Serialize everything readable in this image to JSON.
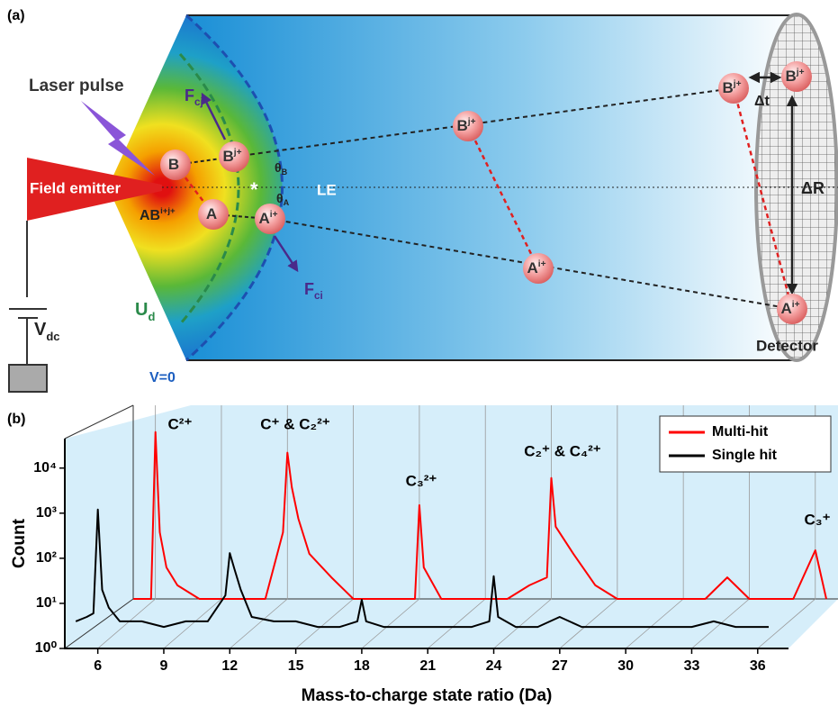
{
  "diagram": {
    "label": "(a)",
    "laser": "Laser pulse",
    "emitter": "Field emitter",
    "voltage": {
      "base": "V",
      "sub": "dc"
    },
    "potential": {
      "base": "U",
      "sub": "d"
    },
    "zero": "V=0",
    "le": "LE",
    "force_j": {
      "base": "F",
      "sub": "cj"
    },
    "force_i": {
      "base": "F",
      "sub": "ci"
    },
    "theta_b": {
      "base": "θ",
      "sub": "B"
    },
    "theta_a": {
      "base": "θ",
      "sub": "A"
    },
    "molecule": {
      "base": "AB",
      "sup": "i+j+"
    },
    "ions": [
      {
        "base": "B"
      },
      {
        "base": "A"
      },
      {
        "base": "B",
        "sup": "j+"
      },
      {
        "base": "A",
        "sup": "i+"
      },
      {
        "base": "B",
        "sup": "j+"
      },
      {
        "base": "A",
        "sup": "i+"
      },
      {
        "base": "B",
        "sup": "j+"
      },
      {
        "base": "B",
        "sup": "j+"
      },
      {
        "base": "A",
        "sup": "i+"
      }
    ],
    "delta_t": "Δt",
    "delta_r": "ΔR",
    "detector": "Detector"
  },
  "chart_data": {
    "type": "line",
    "panel_label": "(b)",
    "xlabel": "Mass-to-charge state ratio (Da)",
    "ylabel": "Count",
    "x": [
      5,
      5.5,
      5.8,
      6,
      6.2,
      6.5,
      7,
      8,
      9,
      10,
      11,
      11.8,
      12,
      12.2,
      12.5,
      13,
      14,
      15,
      16,
      17,
      17.8,
      18,
      18.2,
      19,
      20,
      21,
      22,
      23,
      23.8,
      24,
      24.2,
      25,
      26,
      27,
      28,
      29,
      30,
      31,
      32,
      33,
      34,
      35,
      36,
      36.5
    ],
    "series": [
      {
        "name": "Multi-hit",
        "color": "#ff0000",
        "values": [
          1,
          1,
          1,
          5000,
          30,
          5,
          2,
          1,
          1,
          1,
          1,
          30,
          1750,
          300,
          60,
          10,
          3,
          1,
          1,
          1,
          1,
          120,
          5,
          1,
          1,
          1,
          1,
          2,
          3,
          480,
          40,
          10,
          2,
          1,
          1,
          1,
          1,
          1,
          3,
          1,
          1,
          1,
          12,
          1
        ]
      },
      {
        "name": "Single hit",
        "color": "#000000",
        "values": [
          4,
          5,
          6,
          1200,
          20,
          8,
          4,
          4,
          3,
          4,
          4,
          15,
          130,
          60,
          20,
          5,
          4,
          4,
          3,
          3,
          4,
          12,
          4,
          3,
          3,
          3,
          3,
          3,
          4,
          40,
          5,
          3,
          3,
          5,
          3,
          3,
          3,
          3,
          3,
          3,
          4,
          3,
          3,
          3
        ]
      }
    ],
    "annotations": [
      "C²⁺",
      "C⁺ & C₂²⁺",
      "C₃²⁺",
      "C₂⁺ & C₄²⁺",
      "C₃⁺"
    ],
    "xlim": [
      4.5,
      37.4
    ],
    "xticks": [
      6,
      9,
      12,
      15,
      18,
      21,
      24,
      27,
      30,
      33,
      36
    ],
    "ylim": [
      1,
      45000
    ],
    "log_y": true,
    "yticks": [
      {
        "value": 1,
        "label": "10⁰"
      },
      {
        "value": 10,
        "label": "10¹"
      },
      {
        "value": 100,
        "label": "10²"
      },
      {
        "value": 1000,
        "label": "10³"
      },
      {
        "value": 10000,
        "label": "10⁴"
      }
    ],
    "grid": true,
    "legend": "upper right"
  }
}
